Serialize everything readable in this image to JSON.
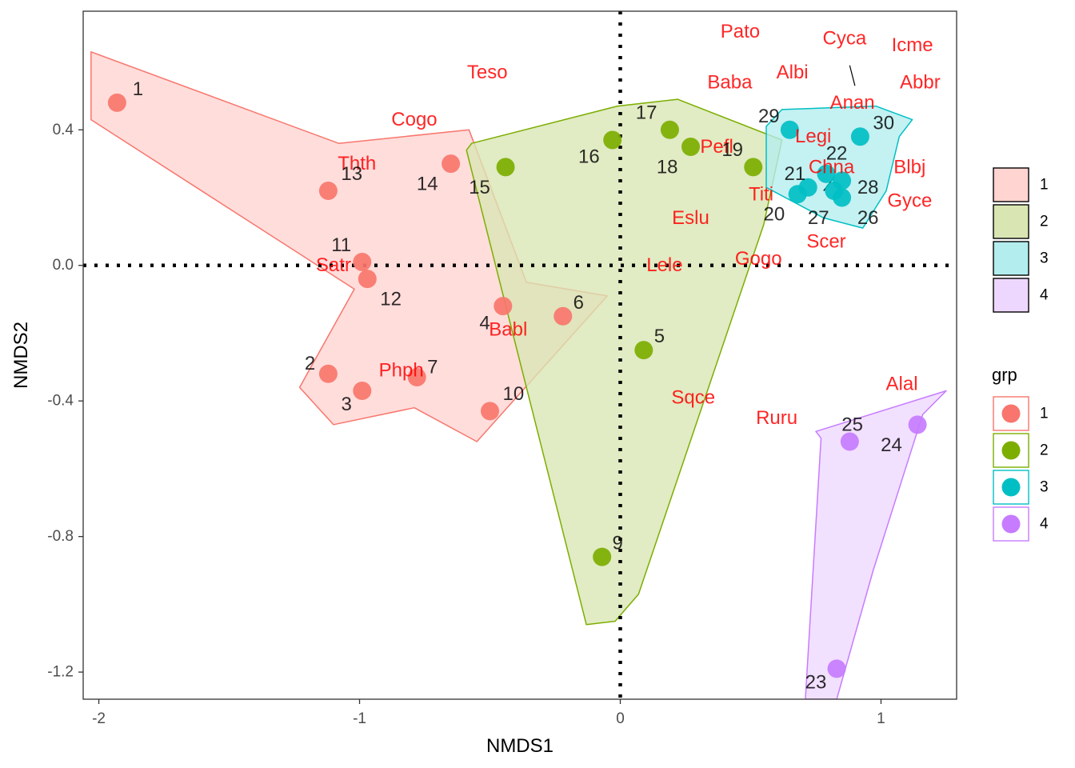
{
  "chart_data": {
    "type": "scatter",
    "xlabel": "NMDS1",
    "ylabel": "NMDS2",
    "xlim": [
      -2.06,
      1.29
    ],
    "ylim": [
      -1.28,
      0.75
    ],
    "x_ticks": [
      -2,
      -1,
      0,
      1
    ],
    "x_tick_labels": [
      "-2",
      "-1",
      "0",
      "1"
    ],
    "y_ticks": [
      -1.2,
      -0.8,
      -0.4,
      0.0,
      0.4
    ],
    "y_tick_labels": [
      "-1.2",
      "-0.8",
      "-0.4",
      "0.0",
      "0.4"
    ],
    "grid": false,
    "reference_lines": {
      "x": 0,
      "y": 0,
      "style": "dotted"
    },
    "legend_placement": "right",
    "colors": {
      "1": "#F8766D",
      "2": "#7CAE00",
      "3": "#00BFC4",
      "4": "#C77CFF"
    },
    "hull_fills": {
      "1": "#FFD4D1",
      "2": "#D9E6B3",
      "3": "#B3EDEE",
      "4": "#EED7FF"
    },
    "species_color": "#FF0000",
    "fill_legend": {
      "title": "",
      "entries": [
        "1",
        "2",
        "3",
        "4"
      ]
    },
    "point_legend": {
      "title": "grp",
      "entries": [
        "1",
        "2",
        "3",
        "4"
      ]
    },
    "hulls": {
      "1": [
        [
          -2.03,
          0.63
        ],
        [
          -1.08,
          0.36
        ],
        [
          -0.58,
          0.4
        ],
        [
          -0.36,
          -0.05
        ],
        [
          -0.05,
          -0.09
        ],
        [
          -0.55,
          -0.52
        ],
        [
          -0.79,
          -0.42
        ],
        [
          -1.1,
          -0.47
        ],
        [
          -1.23,
          -0.36
        ],
        [
          -1.02,
          -0.07
        ],
        [
          -2.03,
          0.43
        ]
      ],
      "2": [
        [
          -0.57,
          0.36
        ],
        [
          -0.01,
          0.47
        ],
        [
          0.22,
          0.49
        ],
        [
          0.62,
          0.37
        ],
        [
          0.55,
          0.12
        ],
        [
          0.07,
          -0.97
        ],
        [
          -0.02,
          -1.05
        ],
        [
          -0.13,
          -1.06
        ],
        [
          -0.59,
          0.34
        ]
      ],
      "3": [
        [
          0.56,
          0.41
        ],
        [
          0.62,
          0.46
        ],
        [
          0.98,
          0.47
        ],
        [
          1.12,
          0.43
        ],
        [
          1.07,
          0.38
        ],
        [
          1.02,
          0.22
        ],
        [
          0.93,
          0.11
        ],
        [
          0.78,
          0.14
        ],
        [
          0.56,
          0.23
        ]
      ],
      "4": [
        [
          0.75,
          -0.49
        ],
        [
          1.25,
          -0.37
        ],
        [
          1.16,
          -0.44
        ],
        [
          0.97,
          -0.9
        ],
        [
          0.83,
          -1.28
        ],
        [
          0.71,
          -1.28
        ],
        [
          0.77,
          -0.51
        ]
      ]
    },
    "sites": [
      {
        "id": "1",
        "x": -1.93,
        "y": 0.48,
        "group": "1"
      },
      {
        "id": "2",
        "x": -1.12,
        "y": -0.32,
        "group": "1"
      },
      {
        "id": "3",
        "x": -0.99,
        "y": -0.37,
        "group": "1"
      },
      {
        "id": "4",
        "x": -0.45,
        "y": -0.12,
        "group": "1"
      },
      {
        "id": "6",
        "x": -0.22,
        "y": -0.15,
        "group": "1"
      },
      {
        "id": "7",
        "x": -0.78,
        "y": -0.33,
        "group": "1"
      },
      {
        "id": "10",
        "x": -0.5,
        "y": -0.43,
        "group": "1"
      },
      {
        "id": "11",
        "x": -0.99,
        "y": 0.01,
        "group": "1"
      },
      {
        "id": "12",
        "x": -0.97,
        "y": -0.04,
        "group": "1"
      },
      {
        "id": "13",
        "x": -1.12,
        "y": 0.22,
        "group": "1"
      },
      {
        "id": "14",
        "x": -0.65,
        "y": 0.3,
        "group": "1"
      },
      {
        "id": "5",
        "x": 0.09,
        "y": -0.25,
        "group": "2"
      },
      {
        "id": "9",
        "x": -0.07,
        "y": -0.86,
        "group": "2"
      },
      {
        "id": "15",
        "x": -0.44,
        "y": 0.29,
        "group": "2"
      },
      {
        "id": "16",
        "x": -0.03,
        "y": 0.37,
        "group": "2"
      },
      {
        "id": "17",
        "x": 0.19,
        "y": 0.4,
        "group": "2"
      },
      {
        "id": "18",
        "x": 0.27,
        "y": 0.35,
        "group": "2"
      },
      {
        "id": "19",
        "x": 0.51,
        "y": 0.29,
        "group": "2"
      },
      {
        "id": "20",
        "x": 0.68,
        "y": 0.21,
        "group": "3"
      },
      {
        "id": "21",
        "x": 0.72,
        "y": 0.23,
        "group": "3"
      },
      {
        "id": "22",
        "x": 0.79,
        "y": 0.27,
        "group": "3"
      },
      {
        "id": "26",
        "x": 0.85,
        "y": 0.2,
        "group": "3"
      },
      {
        "id": "27",
        "x": 0.82,
        "y": 0.22,
        "group": "3"
      },
      {
        "id": "28",
        "x": 0.85,
        "y": 0.25,
        "group": "3"
      },
      {
        "id": "29",
        "x": 0.65,
        "y": 0.4,
        "group": "3"
      },
      {
        "id": "30",
        "x": 0.92,
        "y": 0.38,
        "group": "3"
      },
      {
        "id": "23",
        "x": 0.83,
        "y": -1.19,
        "group": "4"
      },
      {
        "id": "24",
        "x": 1.14,
        "y": -0.47,
        "group": "4"
      },
      {
        "id": "25",
        "x": 0.88,
        "y": -0.52,
        "group": "4"
      }
    ],
    "site_labels": [
      {
        "text": "1",
        "x": -1.85,
        "y": 0.52
      },
      {
        "text": "2",
        "x": -1.19,
        "y": -0.29
      },
      {
        "text": "3",
        "x": -1.05,
        "y": -0.41
      },
      {
        "text": "4",
        "x": -0.52,
        "y": -0.17
      },
      {
        "text": "6",
        "x": -0.16,
        "y": -0.11
      },
      {
        "text": "7",
        "x": -0.72,
        "y": -0.3
      },
      {
        "text": "10",
        "x": -0.41,
        "y": -0.38
      },
      {
        "text": "11",
        "x": -1.07,
        "y": 0.06
      },
      {
        "text": "12",
        "x": -0.88,
        "y": -0.1
      },
      {
        "text": "13",
        "x": -1.03,
        "y": 0.27
      },
      {
        "text": "14",
        "x": -0.74,
        "y": 0.24
      },
      {
        "text": "15",
        "x": -0.54,
        "y": 0.23
      },
      {
        "text": "5",
        "x": 0.15,
        "y": -0.21
      },
      {
        "text": "9",
        "x": -0.01,
        "y": -0.82
      },
      {
        "text": "16",
        "x": -0.12,
        "y": 0.32
      },
      {
        "text": "17",
        "x": 0.1,
        "y": 0.45
      },
      {
        "text": "18",
        "x": 0.18,
        "y": 0.29
      },
      {
        "text": "19",
        "x": 0.43,
        "y": 0.34
      },
      {
        "text": "20",
        "x": 0.59,
        "y": 0.15
      },
      {
        "text": "21",
        "x": 0.67,
        "y": 0.27
      },
      {
        "text": "22",
        "x": 0.83,
        "y": 0.33
      },
      {
        "text": "26",
        "x": 0.95,
        "y": 0.14
      },
      {
        "text": "27",
        "x": 0.76,
        "y": 0.14
      },
      {
        "text": "28",
        "x": 0.95,
        "y": 0.23
      },
      {
        "text": "29",
        "x": 0.57,
        "y": 0.44
      },
      {
        "text": "30",
        "x": 1.01,
        "y": 0.42
      },
      {
        "text": "23",
        "x": 0.75,
        "y": -1.23
      },
      {
        "text": "24",
        "x": 1.04,
        "y": -0.53
      },
      {
        "text": "25",
        "x": 0.89,
        "y": -0.47
      }
    ],
    "species": [
      {
        "text": "Pato",
        "x": 0.46,
        "y": 0.69
      },
      {
        "text": "Cyca",
        "x": 0.86,
        "y": 0.67
      },
      {
        "text": "Icme",
        "x": 1.12,
        "y": 0.65
      },
      {
        "text": "Teso",
        "x": -0.51,
        "y": 0.57
      },
      {
        "text": "Albi",
        "x": 0.66,
        "y": 0.57
      },
      {
        "text": "Baba",
        "x": 0.42,
        "y": 0.54
      },
      {
        "text": "Abbr",
        "x": 1.15,
        "y": 0.54
      },
      {
        "text": "Anan",
        "x": 0.89,
        "y": 0.48
      },
      {
        "text": "Cogo",
        "x": -0.79,
        "y": 0.43
      },
      {
        "text": "Legi",
        "x": 0.74,
        "y": 0.38
      },
      {
        "text": "Pefl",
        "x": 0.37,
        "y": 0.35
      },
      {
        "text": "Thth",
        "x": -1.01,
        "y": 0.3
      },
      {
        "text": "Chna",
        "x": 0.81,
        "y": 0.29
      },
      {
        "text": "Blbj",
        "x": 1.11,
        "y": 0.29
      },
      {
        "text": "Titi",
        "x": 0.54,
        "y": 0.21
      },
      {
        "text": "Gyce",
        "x": 1.11,
        "y": 0.19
      },
      {
        "text": "Eslu",
        "x": 0.27,
        "y": 0.14
      },
      {
        "text": "Scer",
        "x": 0.79,
        "y": 0.07
      },
      {
        "text": "Gogo",
        "x": 0.53,
        "y": 0.02
      },
      {
        "text": "Lele",
        "x": 0.17,
        "y": 0.0
      },
      {
        "text": "Satr",
        "x": -1.1,
        "y": -0.0
      },
      {
        "text": "Babl",
        "x": -0.43,
        "y": -0.19
      },
      {
        "text": "Phph",
        "x": -0.84,
        "y": -0.31
      },
      {
        "text": "Sqce",
        "x": 0.28,
        "y": -0.39
      },
      {
        "text": "Alal",
        "x": 1.08,
        "y": -0.35
      },
      {
        "text": "Ruru",
        "x": 0.6,
        "y": -0.45
      }
    ],
    "leader_segments": [
      [
        [
          0.88,
          0.59
        ],
        [
          0.9,
          0.53
        ]
      ],
      [
        [
          0.78,
          0.22
        ],
        [
          0.82,
          0.26
        ]
      ]
    ]
  }
}
